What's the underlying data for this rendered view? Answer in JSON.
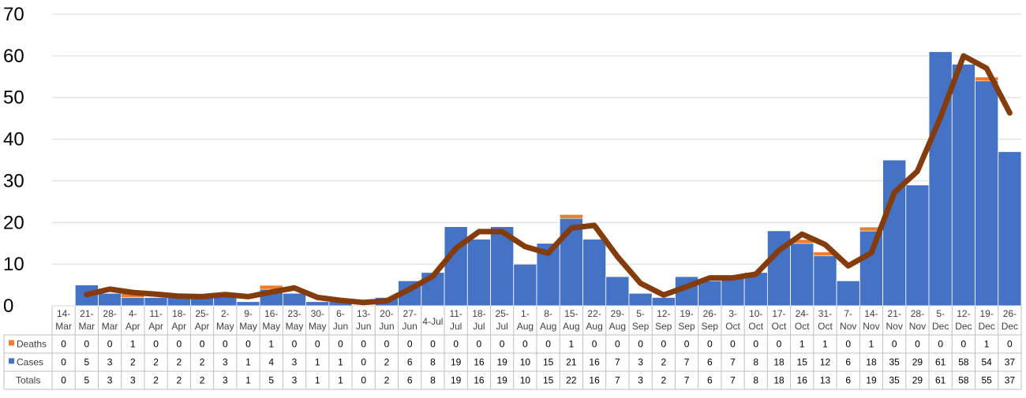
{
  "colors": {
    "cases": "#4472C4",
    "deaths": "#ED7D31",
    "trend": "#843C0C",
    "grid": "#D9D9D9",
    "border": "#BFBFBF"
  },
  "chart_data": {
    "type": "bar",
    "stacked": true,
    "ylim": [
      0,
      70
    ],
    "yticks": [
      0,
      10,
      20,
      30,
      40,
      50,
      60,
      70
    ],
    "grid": true,
    "legend": "data-table",
    "categories": [
      [
        "14-",
        "Mar"
      ],
      [
        "21-",
        "Mar"
      ],
      [
        "28-",
        "Mar"
      ],
      [
        "4-",
        "Apr"
      ],
      [
        "11-",
        "Apr"
      ],
      [
        "18-",
        "Apr"
      ],
      [
        "25-",
        "Apr"
      ],
      [
        "2-",
        "May"
      ],
      [
        "9-",
        "May"
      ],
      [
        "16-",
        "May"
      ],
      [
        "23-",
        "May"
      ],
      [
        "30-",
        "May"
      ],
      [
        "6-",
        "Jun"
      ],
      [
        "13-",
        "Jun"
      ],
      [
        "20-",
        "Jun"
      ],
      [
        "27-",
        "Jun"
      ],
      [
        "4-Jul"
      ],
      [
        "11-",
        "Jul"
      ],
      [
        "18-",
        "Jul"
      ],
      [
        "25-",
        "Jul"
      ],
      [
        "1-",
        "Aug"
      ],
      [
        "8-",
        "Aug"
      ],
      [
        "15-",
        "Aug"
      ],
      [
        "22-",
        "Aug"
      ],
      [
        "29-",
        "Aug"
      ],
      [
        "5-",
        "Sep"
      ],
      [
        "12-",
        "Sep"
      ],
      [
        "19-",
        "Sep"
      ],
      [
        "26-",
        "Sep"
      ],
      [
        "3-",
        "Oct"
      ],
      [
        "10-",
        "Oct"
      ],
      [
        "17-",
        "Oct"
      ],
      [
        "24-",
        "Oct"
      ],
      [
        "31-",
        "Oct"
      ],
      [
        "7-",
        "Nov"
      ],
      [
        "14-",
        "Nov"
      ],
      [
        "21-",
        "Nov"
      ],
      [
        "28-",
        "Nov"
      ],
      [
        "5-",
        "Dec"
      ],
      [
        "12-",
        "Dec"
      ],
      [
        "19-",
        "Dec"
      ],
      [
        "26-",
        "Dec"
      ]
    ],
    "series": [
      {
        "name": "Deaths",
        "values": [
          0,
          0,
          0,
          1,
          0,
          0,
          0,
          0,
          0,
          1,
          0,
          0,
          0,
          0,
          0,
          0,
          0,
          0,
          0,
          0,
          0,
          0,
          1,
          0,
          0,
          0,
          0,
          0,
          0,
          0,
          0,
          0,
          1,
          1,
          0,
          1,
          0,
          0,
          0,
          0,
          1,
          0
        ]
      },
      {
        "name": "Cases",
        "values": [
          0,
          5,
          3,
          2,
          2,
          2,
          2,
          3,
          1,
          4,
          3,
          1,
          1,
          0,
          2,
          6,
          8,
          19,
          16,
          19,
          10,
          15,
          21,
          16,
          7,
          3,
          2,
          7,
          6,
          7,
          8,
          18,
          15,
          12,
          6,
          18,
          35,
          29,
          61,
          58,
          54,
          37
        ]
      }
    ],
    "table_rows": [
      {
        "label": "Deaths",
        "values": [
          0,
          0,
          0,
          1,
          0,
          0,
          0,
          0,
          0,
          1,
          0,
          0,
          0,
          0,
          0,
          0,
          0,
          0,
          0,
          0,
          0,
          0,
          1,
          0,
          0,
          0,
          0,
          0,
          0,
          0,
          0,
          0,
          1,
          1,
          0,
          1,
          0,
          0,
          0,
          0,
          1,
          0
        ]
      },
      {
        "label": "Cases",
        "values": [
          0,
          5,
          3,
          2,
          2,
          2,
          2,
          3,
          1,
          4,
          3,
          1,
          1,
          0,
          2,
          6,
          8,
          19,
          16,
          19,
          10,
          15,
          21,
          16,
          7,
          3,
          2,
          7,
          6,
          7,
          8,
          18,
          15,
          12,
          6,
          18,
          35,
          29,
          61,
          58,
          54,
          37
        ]
      },
      {
        "label": "Totals",
        "values": [
          0,
          5,
          3,
          3,
          2,
          2,
          2,
          3,
          1,
          5,
          3,
          1,
          1,
          0,
          2,
          6,
          8,
          19,
          16,
          19,
          10,
          15,
          22,
          16,
          7,
          3,
          2,
          7,
          6,
          7,
          8,
          18,
          16,
          13,
          6,
          19,
          35,
          29,
          61,
          58,
          55,
          37
        ]
      }
    ],
    "trend": {
      "type": "moving-average",
      "start_index": 1,
      "values": [
        2.7,
        4.0,
        3.2,
        2.8,
        2.3,
        2.2,
        2.7,
        2.2,
        3.3,
        4.3,
        2.0,
        1.3,
        0.8,
        1.2,
        4.0,
        7.1,
        13.8,
        17.8,
        17.8,
        14.2,
        12.6,
        18.7,
        19.3,
        11.8,
        5.4,
        2.6,
        4.6,
        6.7,
        6.7,
        7.6,
        13.3,
        17.2,
        14.7,
        9.6,
        12.7,
        27.2,
        32.3,
        45.3,
        60.0,
        57.0,
        46.3
      ]
    }
  }
}
